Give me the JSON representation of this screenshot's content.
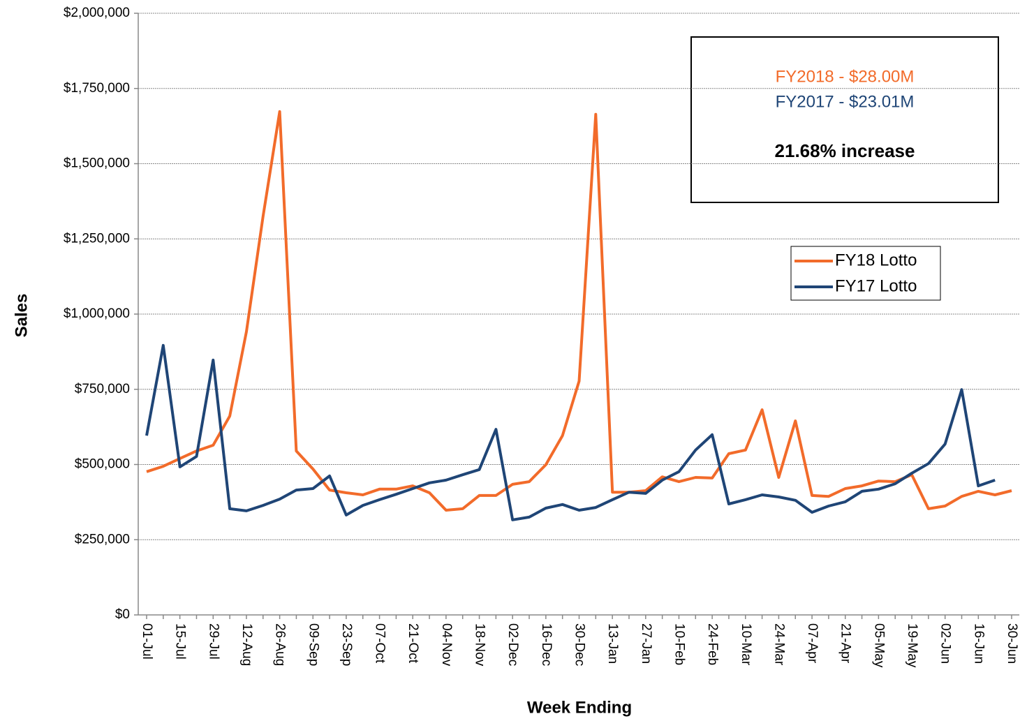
{
  "chart_data": {
    "type": "line",
    "xlabel": "Week Ending",
    "ylabel": "Sales",
    "categories": [
      "01-Jul",
      null,
      "15-Jul",
      null,
      "29-Jul",
      null,
      "12-Aug",
      null,
      "26-Aug",
      null,
      "09-Sep",
      null,
      "23-Sep",
      null,
      "07-Oct",
      null,
      "21-Oct",
      null,
      "04-Nov",
      null,
      "18-Nov",
      null,
      "02-Dec",
      null,
      "16-Dec",
      null,
      "30-Dec",
      null,
      "13-Jan",
      null,
      "27-Jan",
      null,
      "10-Feb",
      null,
      "24-Feb",
      null,
      "10-Mar",
      null,
      "24-Mar",
      null,
      "07-Apr",
      null,
      "21-Apr",
      null,
      "05-May",
      null,
      "19-May",
      null,
      "02-Jun",
      null,
      "16-Jun",
      null,
      "30-Jun"
    ],
    "series": [
      {
        "name": "FY18 Lotto",
        "color": "#f26b2a",
        "values": [
          476000,
          494000,
          520000,
          545000,
          564000,
          661000,
          942000,
          1325000,
          1673000,
          545000,
          485000,
          415000,
          406000,
          399000,
          418000,
          418000,
          429000,
          406000,
          348000,
          353000,
          397000,
          397000,
          434000,
          443000,
          499000,
          596000,
          777000,
          1664000,
          408000,
          408000,
          413000,
          459000,
          443000,
          457000,
          455000,
          536000,
          548000,
          682000,
          457000,
          645000,
          397000,
          394000,
          420000,
          429000,
          445000,
          443000,
          466000,
          353000,
          362000,
          394000,
          411000,
          399000,
          413000
        ]
      },
      {
        "name": "FY17 Lotto",
        "color": "#1f4576",
        "values": [
          596000,
          896000,
          492000,
          527000,
          847000,
          353000,
          346000,
          364000,
          385000,
          415000,
          420000,
          462000,
          332000,
          364000,
          383000,
          401000,
          420000,
          439000,
          448000,
          466000,
          483000,
          617000,
          316000,
          325000,
          355000,
          367000,
          348000,
          357000,
          383000,
          408000,
          404000,
          448000,
          476000,
          548000,
          599000,
          369000,
          383000,
          399000,
          392000,
          381000,
          341000,
          362000,
          376000,
          411000,
          418000,
          436000,
          471000,
          503000,
          568000,
          749000,
          429000,
          448000,
          null
        ]
      }
    ],
    "ylim": [
      0,
      2000000
    ],
    "yticks": [
      {
        "value": 0,
        "label": "$0"
      },
      {
        "value": 250000,
        "label": "$250,000"
      },
      {
        "value": 500000,
        "label": "$500,000"
      },
      {
        "value": 750000,
        "label": "$750,000"
      },
      {
        "value": 1000000,
        "label": "$1,000,000"
      },
      {
        "value": 1250000,
        "label": "$1,250,000"
      },
      {
        "value": 1500000,
        "label": "$1,500,000"
      },
      {
        "value": 1750000,
        "label": "$1,750,000"
      },
      {
        "value": 2000000,
        "label": "$2,000,000"
      }
    ],
    "grid": true,
    "legend": "right",
    "annotations": [
      {
        "text": "FY2018 - $28.00M",
        "color": "#f26b2a"
      },
      {
        "text": "FY2017 - $23.01M",
        "color": "#1f4576"
      },
      {
        "text": "21.68% increase",
        "color": "#000000"
      }
    ]
  }
}
